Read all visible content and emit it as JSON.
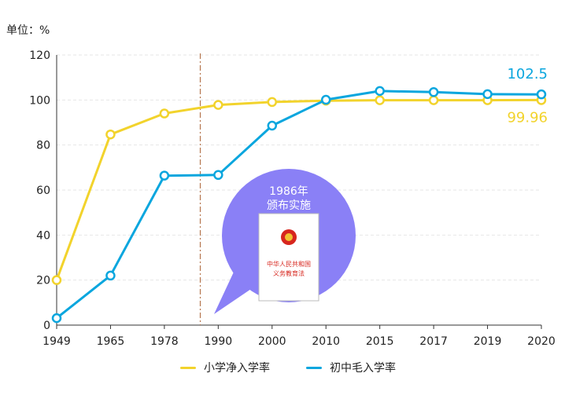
{
  "unit_label": "单位：%",
  "colors": {
    "primary": "#f2d32c",
    "junior": "#0aa6de",
    "bubble": "#8a80f6",
    "marker_line": "#b5754d"
  },
  "annotation": {
    "year_text": "1986年",
    "action_text": "颁布实施",
    "doc_title_line1": "中华人民共和国",
    "doc_title_line2": "义务教育法",
    "doc_icon": "national-emblem-icon",
    "marker_at_year": 1986
  },
  "chart_data": {
    "type": "line",
    "categories": [
      "1949",
      "1965",
      "1978",
      "1990",
      "2000",
      "2010",
      "2015",
      "2017",
      "2019",
      "2020"
    ],
    "ylim": [
      0,
      120
    ],
    "yticks": [
      0,
      20,
      40,
      60,
      80,
      100,
      120
    ],
    "grid": true,
    "legend_position": "bottom",
    "series": [
      {
        "name": "小学净入学率",
        "color": "#f2d32c",
        "values": [
          20,
          84.7,
          94,
          97.8,
          99.1,
          99.7,
          99.9,
          99.9,
          99.9,
          99.96
        ]
      },
      {
        "name": "初中毛入学率",
        "color": "#0aa6de",
        "values": [
          3.1,
          22,
          66.4,
          66.7,
          88.6,
          100.1,
          104,
          103.5,
          102.6,
          102.5
        ]
      }
    ],
    "end_labels": [
      {
        "series": "初中毛入学率",
        "text": "102.5"
      },
      {
        "series": "小学净入学率",
        "text": "99.96"
      }
    ]
  }
}
